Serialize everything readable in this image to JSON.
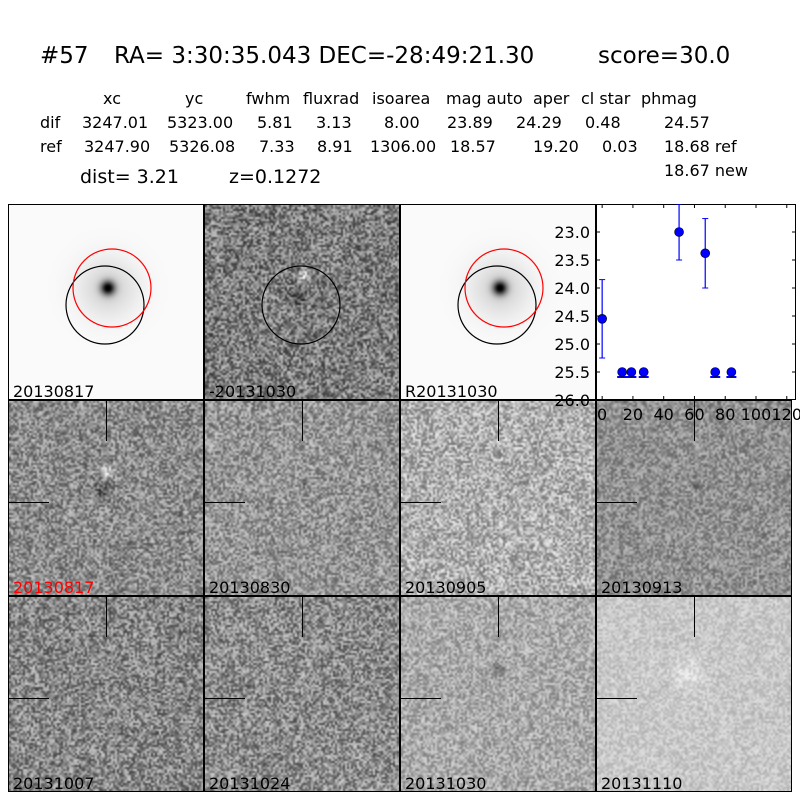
{
  "title": {
    "id": "#57",
    "coords": "RA= 3:30:35.043 DEC=-28:49:21.30",
    "score": "score=30.0"
  },
  "table": {
    "columns": [
      "xc",
      "yc",
      "fwhm",
      "fluxrad",
      "isoarea",
      "mag auto",
      "aper",
      "cl star",
      "phmag"
    ],
    "rows": [
      {
        "label": "dif",
        "values": [
          "3247.01",
          "5323.00",
          "5.81",
          "3.13",
          "8.00",
          "23.89",
          "24.29",
          "0.48",
          "24.57"
        ]
      },
      {
        "label": "ref",
        "values": [
          "3247.90",
          "5326.08",
          "7.33",
          "8.91",
          "1306.00",
          "18.57",
          "19.20",
          "0.03",
          "18.68 ref"
        ]
      }
    ],
    "extra": "18.67 new",
    "dist": "dist=  3.21",
    "z": "z=0.1272"
  },
  "panels": [
    {
      "label": "20130817",
      "label_color": "#000000"
    },
    {
      "label": "-20131030",
      "label_color": "#000000"
    },
    {
      "label": "R20131030",
      "label_color": "#000000"
    },
    {
      "label": "20130817",
      "label_color": "#ff0000"
    },
    {
      "label": "20130830",
      "label_color": "#000000"
    },
    {
      "label": "20130905",
      "label_color": "#000000"
    },
    {
      "label": "20130913",
      "label_color": "#000000"
    },
    {
      "label": "20131007",
      "label_color": "#000000"
    },
    {
      "label": "20131024",
      "label_color": "#000000"
    },
    {
      "label": "20131030",
      "label_color": "#000000"
    },
    {
      "label": "20131110",
      "label_color": "#000000"
    }
  ],
  "chart_data": {
    "type": "scatter",
    "xlim": [
      -4,
      126
    ],
    "ylim": [
      26.0,
      22.5
    ],
    "y_inverted": true,
    "xticks": [
      "0",
      "20",
      "40",
      "60",
      "80",
      "100",
      "120"
    ],
    "yticks": [
      "23.0",
      "23.5",
      "24.0",
      "24.5",
      "25.0",
      "25.5",
      "26.0"
    ],
    "color": "#0000ff",
    "points": [
      {
        "x": 0,
        "y": 24.55,
        "err": 0.7
      },
      {
        "x": 13,
        "y": 25.5,
        "limit": true
      },
      {
        "x": 19,
        "y": 25.5,
        "limit": true
      },
      {
        "x": 27,
        "y": 25.5,
        "limit": true
      },
      {
        "x": 50,
        "y": 23.0,
        "err": 0.5
      },
      {
        "x": 67,
        "y": 23.38,
        "err": 0.62
      },
      {
        "x": 73.5,
        "y": 25.5,
        "limit": true
      },
      {
        "x": 84,
        "y": 25.5,
        "limit": true
      }
    ]
  }
}
